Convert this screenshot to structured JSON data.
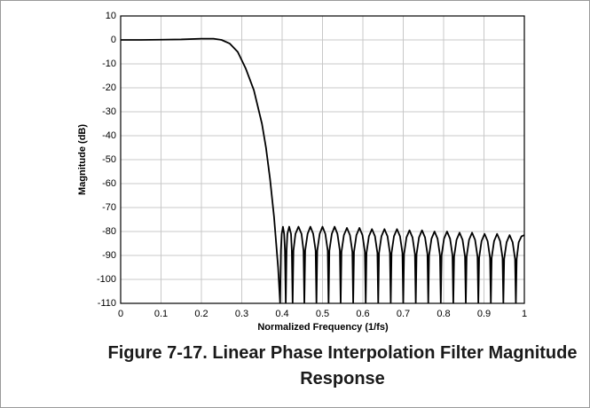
{
  "chart_data": {
    "type": "line",
    "title": "Figure 7-17. Linear Phase Interpolation Filter Magnitude Response",
    "xlabel": "Normalized Frequency (1/fs)",
    "ylabel": "Magnitude (dB)",
    "xlim": [
      0,
      1
    ],
    "ylim": [
      -110,
      10
    ],
    "xticks": [
      0,
      0.1,
      0.2,
      0.3,
      0.4,
      0.5,
      0.6,
      0.7,
      0.8,
      0.9,
      1
    ],
    "yticks": [
      10,
      0,
      -10,
      -20,
      -30,
      -40,
      -50,
      -60,
      -70,
      -80,
      -90,
      -100,
      -110
    ],
    "grid": true,
    "color": "#000000",
    "x": [
      0,
      0.05,
      0.1,
      0.15,
      0.2,
      0.23,
      0.25,
      0.27,
      0.29,
      0.31,
      0.33,
      0.35,
      0.36,
      0.37,
      0.38,
      0.39,
      0.395,
      0.397,
      0.399,
      0.402,
      0.405,
      0.407,
      0.409,
      0.411,
      0.413,
      0.4175,
      0.422,
      0.424,
      0.426,
      0.428,
      0.433,
      0.4405,
      0.448,
      0.453,
      0.455,
      0.457,
      0.463,
      0.47,
      0.477,
      0.483,
      0.485,
      0.487,
      0.493,
      0.5,
      0.507,
      0.513,
      0.515,
      0.517,
      0.523,
      0.53,
      0.537,
      0.543,
      0.545,
      0.547,
      0.553,
      0.5605,
      0.568,
      0.574,
      0.576,
      0.578,
      0.584,
      0.5915,
      0.599,
      0.605,
      0.607,
      0.609,
      0.615,
      0.6225,
      0.63,
      0.636,
      0.638,
      0.64,
      0.646,
      0.6535,
      0.661,
      0.667,
      0.669,
      0.671,
      0.677,
      0.6845,
      0.692,
      0.698,
      0.7,
      0.702,
      0.708,
      0.7155,
      0.723,
      0.729,
      0.731,
      0.733,
      0.739,
      0.7465,
      0.754,
      0.76,
      0.762,
      0.764,
      0.77,
      0.7775,
      0.785,
      0.791,
      0.793,
      0.795,
      0.801,
      0.8085,
      0.816,
      0.822,
      0.824,
      0.826,
      0.832,
      0.8395,
      0.847,
      0.853,
      0.855,
      0.857,
      0.863,
      0.8705,
      0.878,
      0.884,
      0.886,
      0.888,
      0.894,
      0.9015,
      0.909,
      0.915,
      0.917,
      0.919,
      0.925,
      0.9325,
      0.94,
      0.946,
      0.948,
      0.95,
      0.956,
      0.9635,
      0.971,
      0.977,
      0.979,
      0.981,
      0.986,
      0.993,
      1
    ],
    "values": [
      0,
      0,
      0.1,
      0.2,
      0.5,
      0.5,
      0,
      -1.5,
      -5,
      -12,
      -21,
      -35,
      -45,
      -58,
      -74,
      -95,
      -110,
      -88,
      -81,
      -78,
      -81,
      -88,
      -110,
      -88,
      -81,
      -78,
      -81,
      -88,
      -110,
      -88,
      -81,
      -78,
      -81,
      -88,
      -110,
      -88,
      -81,
      -78,
      -81,
      -88,
      -110,
      -88,
      -81,
      -78,
      -81,
      -88,
      -110,
      -88,
      -81,
      -78,
      -81,
      -88,
      -110,
      -88.5,
      -81.5,
      -78.5,
      -81.5,
      -88.5,
      -110,
      -88.5,
      -81.5,
      -78.5,
      -81.5,
      -88.5,
      -110,
      -89,
      -82,
      -79,
      -82,
      -89,
      -110,
      -89,
      -82,
      -79,
      -82,
      -89,
      -110,
      -89,
      -82,
      -79,
      -82,
      -89,
      -110,
      -89.5,
      -82.5,
      -79.5,
      -82.5,
      -89.5,
      -110,
      -89.5,
      -82.5,
      -79.5,
      -82.5,
      -89.5,
      -110,
      -90,
      -83,
      -80,
      -83,
      -90,
      -110,
      -90,
      -83,
      -80,
      -83,
      -90,
      -110,
      -90.5,
      -83.5,
      -80.5,
      -83.5,
      -90.5,
      -110,
      -90.5,
      -83.5,
      -80.5,
      -83.5,
      -90.5,
      -110,
      -91,
      -84,
      -81,
      -84,
      -91,
      -110,
      -91,
      -84,
      -81,
      -84,
      -91,
      -110,
      -91.5,
      -84.5,
      -81.5,
      -84.5,
      -91.5,
      -110,
      -91.5,
      -84.5,
      -82,
      -81.5
    ]
  }
}
